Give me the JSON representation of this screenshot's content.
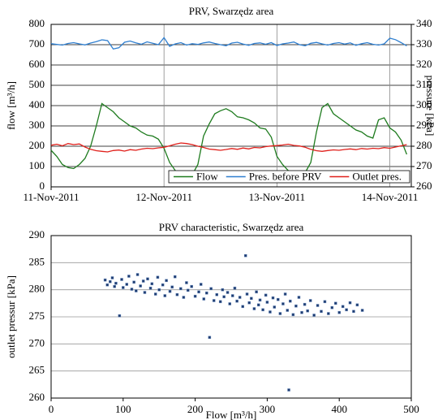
{
  "chart_data": [
    {
      "type": "line",
      "title": "PRV, Swarzędz area",
      "ylabel": "flow [m³/h]",
      "y2label": "pressure [kPa]",
      "x": [
        0,
        0.05,
        0.1,
        0.15,
        0.2,
        0.25,
        0.3,
        0.35,
        0.4,
        0.45,
        0.5,
        0.55,
        0.6,
        0.65,
        0.7,
        0.75,
        0.8,
        0.85,
        0.9,
        0.95,
        1,
        1.05,
        1.1,
        1.15,
        1.2,
        1.25,
        1.3,
        1.35,
        1.4,
        1.45,
        1.5,
        1.55,
        1.6,
        1.65,
        1.7,
        1.75,
        1.8,
        1.85,
        1.9,
        1.95,
        2,
        2.05,
        2.1,
        2.15,
        2.2,
        2.25,
        2.3,
        2.35,
        2.4,
        2.45,
        2.5,
        2.55,
        2.6,
        2.65,
        2.7,
        2.75,
        2.8,
        2.85,
        2.9,
        2.95,
        3,
        3.05,
        3.1,
        3.15
      ],
      "xlim": [
        0,
        3.19
      ],
      "xticks": [
        {
          "value": 0,
          "label": "11-Nov-2011"
        },
        {
          "value": 1,
          "label": "12-Nov-2011"
        },
        {
          "value": 2,
          "label": "13-Nov-2011"
        },
        {
          "value": 3,
          "label": "14-Nov-2011"
        }
      ],
      "ylim": [
        0,
        800
      ],
      "yticks": [
        0,
        100,
        200,
        300,
        400,
        500,
        600,
        700,
        800
      ],
      "y2lim": [
        260,
        340
      ],
      "y2ticks": [
        260,
        270,
        280,
        290,
        300,
        310,
        320,
        330,
        340
      ],
      "grid": true,
      "legend": "lower right",
      "series": [
        {
          "name": "Flow",
          "color": "#1e7b1e",
          "values": [
            180,
            150,
            110,
            95,
            90,
            110,
            140,
            200,
            300,
            410,
            390,
            370,
            340,
            320,
            300,
            290,
            270,
            255,
            250,
            235,
            190,
            120,
            80,
            55,
            40,
            60,
            110,
            250,
            310,
            360,
            375,
            385,
            370,
            345,
            340,
            330,
            315,
            290,
            285,
            245,
            150,
            110,
            80,
            65,
            55,
            70,
            120,
            270,
            390,
            410,
            360,
            340,
            320,
            300,
            280,
            270,
            250,
            240,
            330,
            340,
            290,
            270,
            230,
            160
          ]
        },
        {
          "name": "Pres. before PRV",
          "color": "#2f7fd0",
          "axis": "y2",
          "values": [
            330.5,
            330.1,
            329.8,
            330.6,
            331.0,
            330.4,
            329.9,
            330.8,
            331.5,
            332.4,
            332.0,
            327.9,
            328.5,
            331.2,
            331.8,
            330.9,
            330.2,
            331.4,
            330.7,
            330.0,
            333.5,
            329.2,
            330.4,
            331.0,
            329.8,
            330.5,
            330.1,
            330.9,
            331.3,
            330.6,
            330.0,
            329.5,
            330.8,
            331.2,
            330.3,
            329.7,
            330.6,
            330.9,
            330.2,
            331.0,
            329.6,
            330.4,
            330.8,
            331.3,
            330.0,
            329.5,
            330.7,
            331.1,
            330.4,
            329.8,
            330.6,
            331.0,
            330.3,
            330.9,
            329.7,
            330.5,
            331.0,
            330.2,
            329.8,
            330.4,
            333.2,
            332.5,
            331.0,
            329.4
          ]
        },
        {
          "name": "Outlet pres.",
          "color": "#e0201b",
          "axis": "y2",
          "values": [
            280.5,
            281.0,
            280.2,
            281.3,
            280.8,
            281.1,
            279.6,
            278.5,
            277.8,
            277.5,
            277.2,
            277.9,
            278.1,
            277.6,
            278.3,
            278.0,
            278.6,
            279.0,
            278.8,
            279.2,
            279.5,
            280.2,
            281.0,
            281.6,
            281.3,
            280.8,
            280.0,
            279.4,
            278.6,
            278.3,
            278.0,
            278.4,
            278.9,
            278.5,
            279.1,
            278.7,
            279.4,
            279.2,
            279.8,
            280.1,
            280.3,
            280.6,
            281.0,
            280.4,
            280.1,
            279.5,
            278.5,
            277.8,
            277.5,
            277.9,
            278.2,
            278.0,
            278.4,
            278.7,
            278.3,
            278.9,
            278.6,
            279.0,
            278.8,
            279.3,
            279.0,
            279.6,
            280.2,
            280.8
          ]
        }
      ]
    },
    {
      "type": "scatter",
      "title": "PRV characteristic, Swarzędz area",
      "xlabel": "Flow [m³/h]",
      "ylabel": "outlet pressur [kPa]",
      "xlim": [
        0,
        500
      ],
      "xticks": [
        0,
        100,
        200,
        300,
        400,
        500
      ],
      "ylim": [
        260,
        290
      ],
      "yticks": [
        260,
        265,
        270,
        275,
        280,
        285,
        290
      ],
      "grid": true,
      "color": "#1f3b6e",
      "x": [
        75,
        78,
        82,
        85,
        88,
        90,
        95,
        98,
        100,
        105,
        108,
        112,
        115,
        118,
        120,
        124,
        128,
        130,
        134,
        138,
        140,
        145,
        148,
        150,
        155,
        158,
        160,
        165,
        168,
        172,
        175,
        180,
        184,
        188,
        190,
        195,
        200,
        205,
        208,
        212,
        216,
        220,
        222,
        226,
        230,
        235,
        238,
        240,
        245,
        248,
        252,
        255,
        258,
        262,
        266,
        270,
        272,
        275,
        278,
        282,
        285,
        288,
        290,
        294,
        298,
        300,
        304,
        308,
        310,
        315,
        318,
        322,
        325,
        328,
        330,
        332,
        336,
        340,
        344,
        348,
        352,
        356,
        360,
        365,
        370,
        375,
        380,
        385,
        390,
        395,
        400,
        405,
        410,
        415,
        420,
        425,
        432
      ],
      "values": [
        281.8,
        280.9,
        281.5,
        282.2,
        280.6,
        281.2,
        275.2,
        281.9,
        280.4,
        281.0,
        282.5,
        280.1,
        281.4,
        279.8,
        282.8,
        280.7,
        281.6,
        279.5,
        282.0,
        280.3,
        281.1,
        279.2,
        282.3,
        280.0,
        280.9,
        278.9,
        281.7,
        279.7,
        280.5,
        282.4,
        279.1,
        280.2,
        278.6,
        281.3,
        279.9,
        280.6,
        278.8,
        279.6,
        281.0,
        278.3,
        279.4,
        271.2,
        280.2,
        278.0,
        279.1,
        277.8,
        280.0,
        278.7,
        279.5,
        277.4,
        278.9,
        280.3,
        277.9,
        278.6,
        276.9,
        286.3,
        279.2,
        277.6,
        278.4,
        276.5,
        279.6,
        277.2,
        278.1,
        276.3,
        279.0,
        277.7,
        275.9,
        278.5,
        276.8,
        278.2,
        275.6,
        277.4,
        279.2,
        276.2,
        261.5,
        277.9,
        275.4,
        277.0,
        278.6,
        275.8,
        277.3,
        276.1,
        278.0,
        275.3,
        277.1,
        276.0,
        277.8,
        275.6,
        276.7,
        277.5,
        275.8,
        276.9,
        276.3,
        277.6,
        276.0,
        277.2,
        276.2
      ]
    }
  ]
}
